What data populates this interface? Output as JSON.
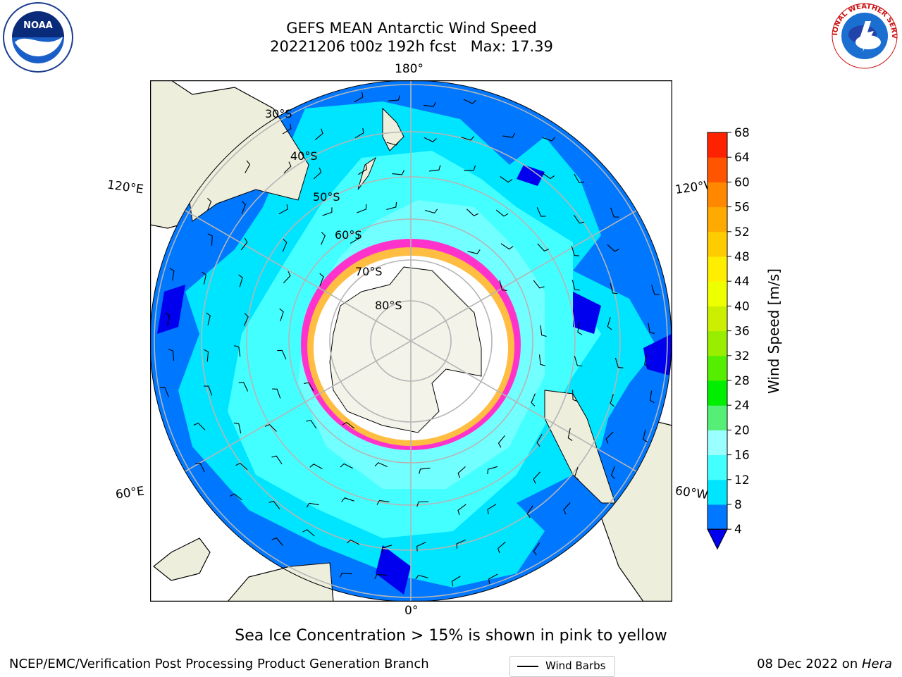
{
  "title": {
    "line1": "GEFS MEAN Antarctic Wind Speed",
    "line2": "20221206 t00z 192h fcst   Max: 17.39"
  },
  "logos": {
    "noaa": {
      "text": "NOAA",
      "icon": "noaa-logo"
    },
    "nws": {
      "text": "NATIONAL WEATHER SERVICE",
      "icon": "nws-logo"
    }
  },
  "map": {
    "projection": "south-polar-stereographic",
    "longitude_labels": [
      "180°",
      "120°E",
      "120°W",
      "60°E",
      "60°W",
      "0°"
    ],
    "latitude_labels": [
      "30°S",
      "40°S",
      "50°S",
      "60°S",
      "70°S",
      "80°S"
    ],
    "legend": {
      "label": "Wind Barbs"
    },
    "colors": {
      "land": "#eeeedd",
      "antarctic_ice_sheet": "#f3f3ea",
      "graticule": "#b5b5b5",
      "sea_ice_pink": "#ff33cc",
      "sea_ice_yellow": "#ffcc33"
    }
  },
  "colorbar": {
    "label": "Wind Speed [m/s]",
    "ticks": [
      "4",
      "8",
      "12",
      "16",
      "20",
      "24",
      "28",
      "32",
      "36",
      "40",
      "44",
      "48",
      "52",
      "56",
      "60",
      "64",
      "68"
    ],
    "colors": [
      "#0077ff",
      "#00e5ff",
      "#44ffff",
      "#99ffff",
      "#55ee77",
      "#00ee00",
      "#55ee00",
      "#99ee00",
      "#ccee00",
      "#eeff00",
      "#ffee00",
      "#ffcc00",
      "#ffaa00",
      "#ff8800",
      "#ff5500",
      "#ff2200"
    ],
    "under_color": "#0000ee"
  },
  "caption": "Sea Ice Concentration > 15% is shown in pink to yellow",
  "footer": {
    "left": "NCEP/EMC/Verification Post Processing Product Generation Branch",
    "right_date": "08 Dec 2022 on ",
    "right_host": "Hera"
  }
}
